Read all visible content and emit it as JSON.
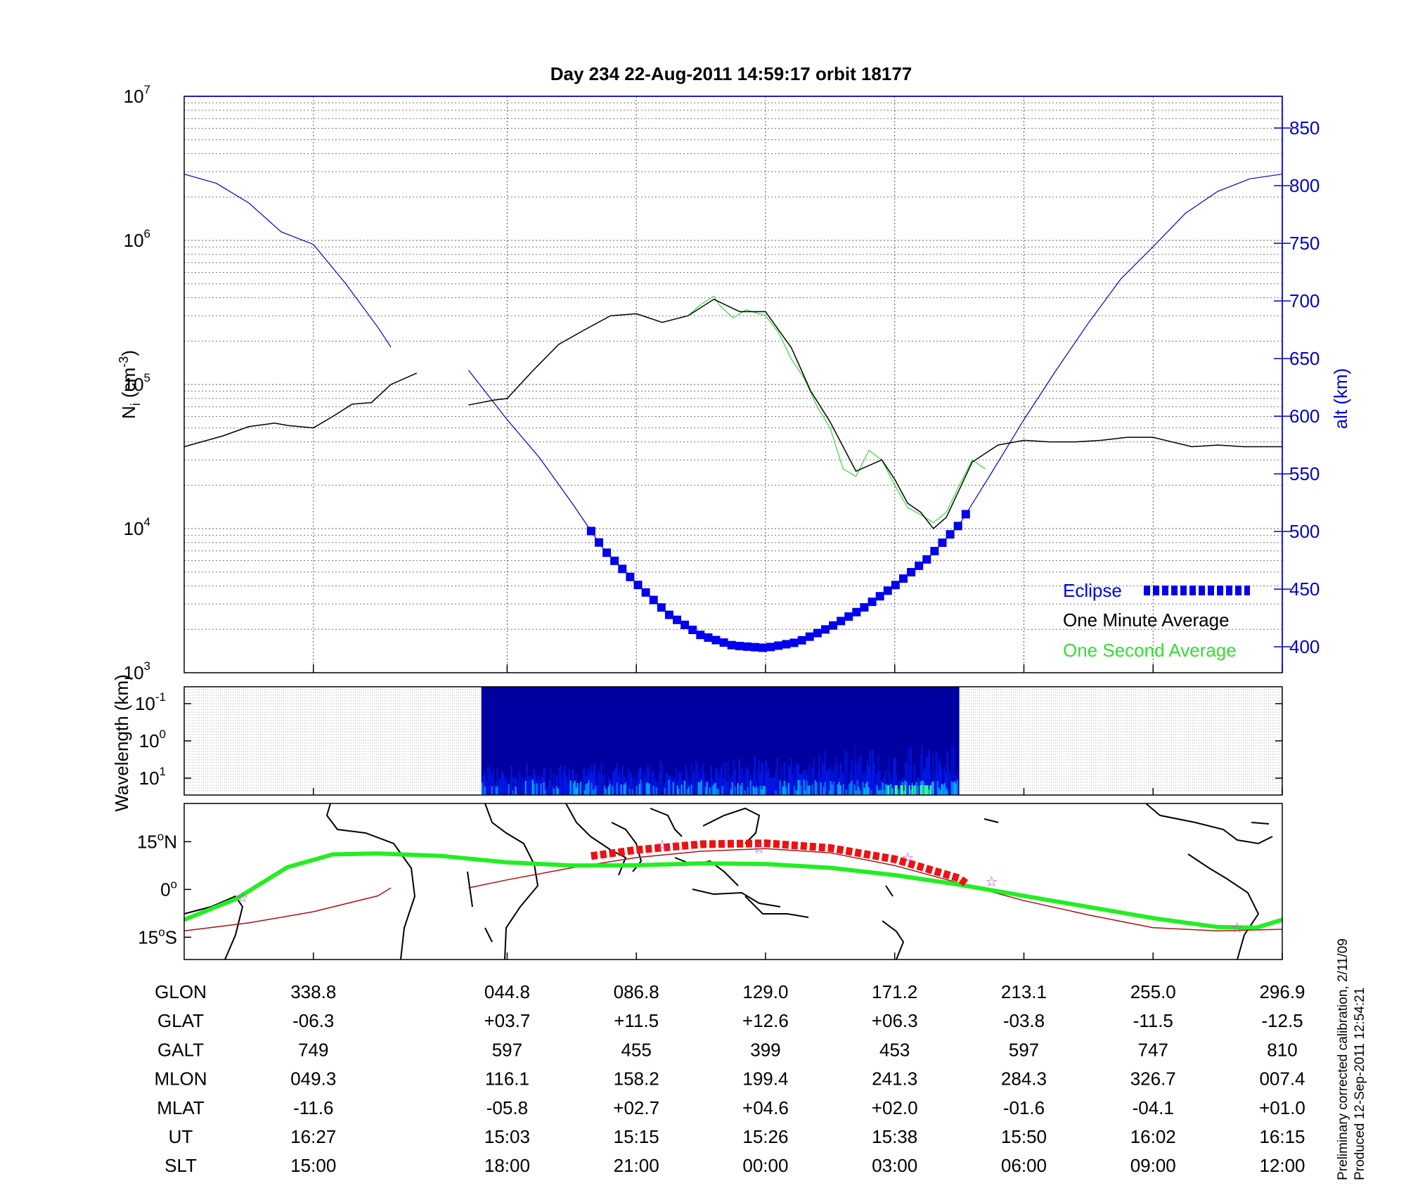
{
  "title": "Day 234  22-Aug-2011 14:59:17   orbit 18177",
  "side_note": {
    "line1": "Preliminary corrected calibration, 2/11/09",
    "line2": "Produced 12-Sep-2011 12:54:21"
  },
  "colors": {
    "altitude": "#0000cc",
    "eclipse": "#0000ee",
    "one_minute": "#000000",
    "one_second": "#33dd33",
    "ground_track": "#22ee22",
    "magnetic_track": "#aa1111",
    "eclipse_track": "#ee1111",
    "star": "#cc33cc"
  },
  "chart_data": [
    {
      "type": "line",
      "panel": "ion-density",
      "ylabel": "N_i (cm^-3)",
      "ylabel_main": "N",
      "ylabel_sub": "i",
      "ylabel_unit_open": " (cm",
      "ylabel_unit_sup": "-3",
      "ylabel_unit_close": ")",
      "yscale": "log",
      "ylim": [
        1000,
        10000000
      ],
      "y_ticks": [
        {
          "base": "10",
          "exp": "3",
          "value": 1000
        },
        {
          "base": "10",
          "exp": "4",
          "value": 10000
        },
        {
          "base": "10",
          "exp": "5",
          "value": 100000
        },
        {
          "base": "10",
          "exp": "6",
          "value": 1000000
        },
        {
          "base": "10",
          "exp": "7",
          "value": 10000000
        }
      ],
      "y2label": "alt (km)",
      "y2lim": [
        377.5,
        877.5
      ],
      "y2_ticks": [
        "400",
        "450",
        "500",
        "550",
        "600",
        "650",
        "700",
        "750",
        "800",
        "850"
      ],
      "x_index_range": [
        0,
        8.5
      ],
      "x_ticks_index": [
        1,
        2.5,
        3.5,
        4.5,
        5.5,
        6.5,
        7.5,
        8.5
      ],
      "grid": true,
      "legend_position": "bottom-right",
      "legend": [
        {
          "label": "Eclipse",
          "key": "eclipse"
        },
        {
          "label": "One Minute Average",
          "key": "one_minute"
        },
        {
          "label": "One Second Average",
          "key": "one_second"
        }
      ],
      "series": [
        {
          "key": "one_minute",
          "segments": [
            {
              "x": [
                0,
                0.3,
                0.5,
                0.7,
                0.8,
                1.0,
                1.15,
                1.3,
                1.45,
                1.6,
                1.8
              ],
              "y": [
                37000,
                44000,
                51000,
                54000,
                52000,
                50000,
                60000,
                73000,
                75000,
                100000,
                120000
              ]
            },
            {
              "x": [
                2.2,
                2.4,
                2.5,
                2.7,
                2.9,
                3.1,
                3.3,
                3.5,
                3.7,
                3.9,
                4.1,
                4.3,
                4.5,
                4.7,
                4.85,
                5.0,
                5.2,
                5.4,
                5.5,
                5.6,
                5.7,
                5.8,
                5.9,
                6.1,
                6.3,
                6.5,
                6.7,
                6.9,
                7.1,
                7.3,
                7.5,
                7.8,
                8.0,
                8.2,
                8.5
              ],
              "y": [
                72000,
                78000,
                80000,
                125000,
                190000,
                240000,
                300000,
                310000,
                270000,
                300000,
                390000,
                320000,
                320000,
                180000,
                90000,
                55000,
                25000,
                30000,
                22000,
                15000,
                13000,
                10000,
                12000,
                29000,
                38000,
                41000,
                40000,
                40000,
                41000,
                43000,
                43000,
                37000,
                38000,
                37000,
                37000
              ]
            }
          ]
        },
        {
          "key": "one_second",
          "segments": [
            {
              "x": [
                3.9,
                4.0,
                4.1,
                4.15,
                4.25,
                4.35,
                4.5,
                4.6,
                4.7,
                4.8,
                4.9,
                5.0,
                5.1,
                5.2,
                5.3,
                5.4,
                5.5,
                5.6,
                5.7,
                5.8,
                5.9,
                6.0,
                6.1,
                6.2
              ],
              "y": [
                300000,
                360000,
                410000,
                350000,
                290000,
                330000,
                300000,
                230000,
                150000,
                110000,
                70000,
                50000,
                26000,
                23000,
                35000,
                30000,
                20000,
                14000,
                12500,
                11000,
                13000,
                20000,
                30000,
                26000
              ]
            }
          ]
        },
        {
          "key": "altitude",
          "axis": "y2",
          "segments": [
            {
              "x": [
                0,
                0.25,
                0.5,
                0.75,
                1.0,
                1.25,
                1.5,
                1.6
              ],
              "y": [
                810,
                802,
                785,
                760,
                749,
                715,
                677,
                660
              ]
            },
            {
              "x": [
                2.2,
                2.5,
                2.75,
                3.0,
                3.25,
                3.5,
                3.75,
                4.0,
                4.25,
                4.5,
                4.75,
                5.0,
                5.25,
                5.5,
                5.75,
                6.0,
                6.25,
                6.5,
                6.75,
                7.0,
                7.25,
                7.5,
                7.75,
                8.0,
                8.25,
                8.5
              ],
              "y": [
                640,
                597,
                564,
                525,
                484,
                455,
                428,
                410,
                401,
                399,
                404,
                417,
                433,
                453,
                476,
                506,
                551,
                597,
                640,
                681,
                719,
                747,
                776,
                795,
                806,
                810
              ]
            }
          ]
        },
        {
          "key": "eclipse",
          "axis": "y2",
          "x_range": [
            3.15,
            6.05
          ]
        }
      ]
    },
    {
      "type": "heatmap",
      "panel": "spectrogram",
      "ylabel": "Wavelength (km)",
      "y_ticks": [
        {
          "base": "10",
          "exp": "-1"
        },
        {
          "base": "10",
          "exp": "0"
        },
        {
          "base": "10",
          "exp": "1"
        }
      ],
      "x_index_range": [
        2.3,
        6.0
      ],
      "colors": [
        "#0000a0",
        "#0020ff",
        "#00c0ff",
        "#40ff90"
      ]
    },
    {
      "type": "line",
      "panel": "ground-track-map",
      "ylim": [
        -22,
        27
      ],
      "y_ticks": [
        {
          "value": 15,
          "num": "15",
          "unit": "N"
        },
        {
          "value": 0,
          "num": "0",
          "unit": ""
        },
        {
          "value": -15,
          "num": "15",
          "unit": "S"
        }
      ],
      "series": [
        {
          "key": "ground_track",
          "x": [
            0,
            0.4,
            0.8,
            1.15,
            1.5,
            2.0,
            2.5,
            3.0,
            3.5,
            4.0,
            4.5,
            5.0,
            5.5,
            6.0,
            6.5,
            7.0,
            7.5,
            8.0,
            8.3,
            8.5
          ],
          "y": [
            -9.5,
            -3,
            7,
            11,
            11.3,
            10.5,
            8.5,
            7.5,
            7.6,
            8.2,
            8,
            6.8,
            4.5,
            1.5,
            -2,
            -5.5,
            -9,
            -11.8,
            -12,
            -9.5
          ]
        },
        {
          "key": "magnetic_track",
          "segments": [
            {
              "x": [
                0,
                0.5,
                1.0,
                1.5,
                1.6
              ],
              "y": [
                -13,
                -10.5,
                -7,
                -2,
                0.5
              ]
            },
            {
              "x": [
                2.2,
                2.5,
                3.0,
                3.5,
                4.0,
                4.5,
                5.0,
                5.5,
                6.0,
                6.5,
                7.0,
                7.5,
                8.0,
                8.5
              ],
              "y": [
                0.5,
                3,
                6.8,
                10,
                12,
                12.8,
                11.5,
                7.5,
                2,
                -3.5,
                -8,
                -12,
                -13,
                -12.5
              ]
            }
          ]
        },
        {
          "key": "eclipse_track",
          "x": [
            3.15,
            3.5,
            4.0,
            4.5,
            5.0,
            5.5,
            6.0,
            6.05
          ],
          "y": [
            10.5,
            12.4,
            14.2,
            14.5,
            13,
            9.5,
            3.5,
            2
          ]
        }
      ],
      "stars": [
        {
          "x": 0.45,
          "y": -2.5
        },
        {
          "x": 3.7,
          "y": 14
        },
        {
          "x": 4.45,
          "y": 13
        },
        {
          "x": 5.6,
          "y": 10
        },
        {
          "x": 6.25,
          "y": 2.5
        },
        {
          "x": 8.15,
          "y": -12
        }
      ]
    },
    {
      "type": "table",
      "panel": "orbit-ephemeris",
      "row_labels": [
        "GLON",
        "GLAT",
        "GALT",
        "MLON",
        "MLAT",
        "UT",
        "SLT"
      ],
      "x_index": [
        1,
        2.5,
        3.5,
        4.5,
        5.5,
        6.5,
        7.5,
        8.5
      ],
      "rows": [
        [
          "338.8",
          "044.8",
          "086.8",
          "129.0",
          "171.2",
          "213.1",
          "255.0",
          "296.9"
        ],
        [
          "-06.3",
          "+03.7",
          "+11.5",
          "+12.6",
          "+06.3",
          "-03.8",
          "-11.5",
          "-12.5"
        ],
        [
          "749",
          "597",
          "455",
          "399",
          "453",
          "597",
          "747",
          "810"
        ],
        [
          "049.3",
          "116.1",
          "158.2",
          "199.4",
          "241.3",
          "284.3",
          "326.7",
          "007.4"
        ],
        [
          "-11.6",
          "-05.8",
          "+02.7",
          "+04.6",
          "+02.0",
          "-01.6",
          "-04.1",
          "+01.0"
        ],
        [
          "16:27",
          "15:03",
          "15:15",
          "15:26",
          "15:38",
          "15:50",
          "16:02",
          "16:15"
        ],
        [
          "15:00",
          "18:00",
          "21:00",
          "00:00",
          "03:00",
          "06:00",
          "09:00",
          "12:00"
        ]
      ]
    }
  ]
}
